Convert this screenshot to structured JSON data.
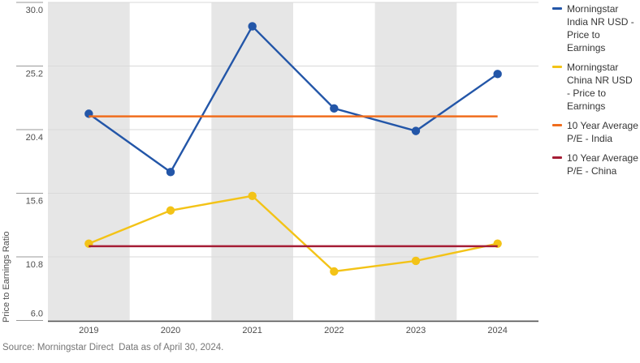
{
  "chart_data": {
    "type": "line",
    "title": "",
    "xlabel": "",
    "ylabel": "Price to Earnings Ratio",
    "x_categories": [
      "2019",
      "2020",
      "2021",
      "2022",
      "2023",
      "2024"
    ],
    "y_ticks": [
      6.0,
      10.8,
      15.6,
      20.4,
      25.2,
      30.0
    ],
    "ylim": [
      6.0,
      30.0
    ],
    "grid": "horizontal",
    "legend_position": "right",
    "band_color": "#e6e6e6",
    "banded_categories": [
      "2019",
      "2021",
      "2023"
    ],
    "grid_color": "#d9d9d9",
    "tick_color": "#999999",
    "axis_line_color": "#555555",
    "series": [
      {
        "name": "Morningstar India NR USD - Price to Earnings",
        "color": "#2356a8",
        "values": [
          21.6,
          17.2,
          28.2,
          22.0,
          20.3,
          24.6
        ],
        "markers": true
      },
      {
        "name": "Morningstar China NR USD - Price to Earnings",
        "color": "#f3c317",
        "values": [
          11.8,
          14.3,
          15.4,
          9.7,
          10.5,
          11.8
        ],
        "markers": true
      }
    ],
    "reference_lines": [
      {
        "name": "10 Year Average P/E - India",
        "color": "#f06d1d",
        "value": 21.4
      },
      {
        "name": "10 Year Average P/E - China",
        "color": "#a51d35",
        "value": 11.6
      }
    ]
  },
  "legend": {
    "items": [
      {
        "label": "Morningstar India NR USD - Price to Earnings",
        "color": "#2356a8"
      },
      {
        "label": "Morningstar China NR USD - Price to Earnings",
        "color": "#f3c317"
      },
      {
        "label": "10 Year Average P/E - India",
        "color": "#f06d1d"
      },
      {
        "label": "10 Year Average P/E - China",
        "color": "#a51d35"
      }
    ]
  },
  "source_note": "Source: Morningstar Direct  Data as of April 30, 2024."
}
